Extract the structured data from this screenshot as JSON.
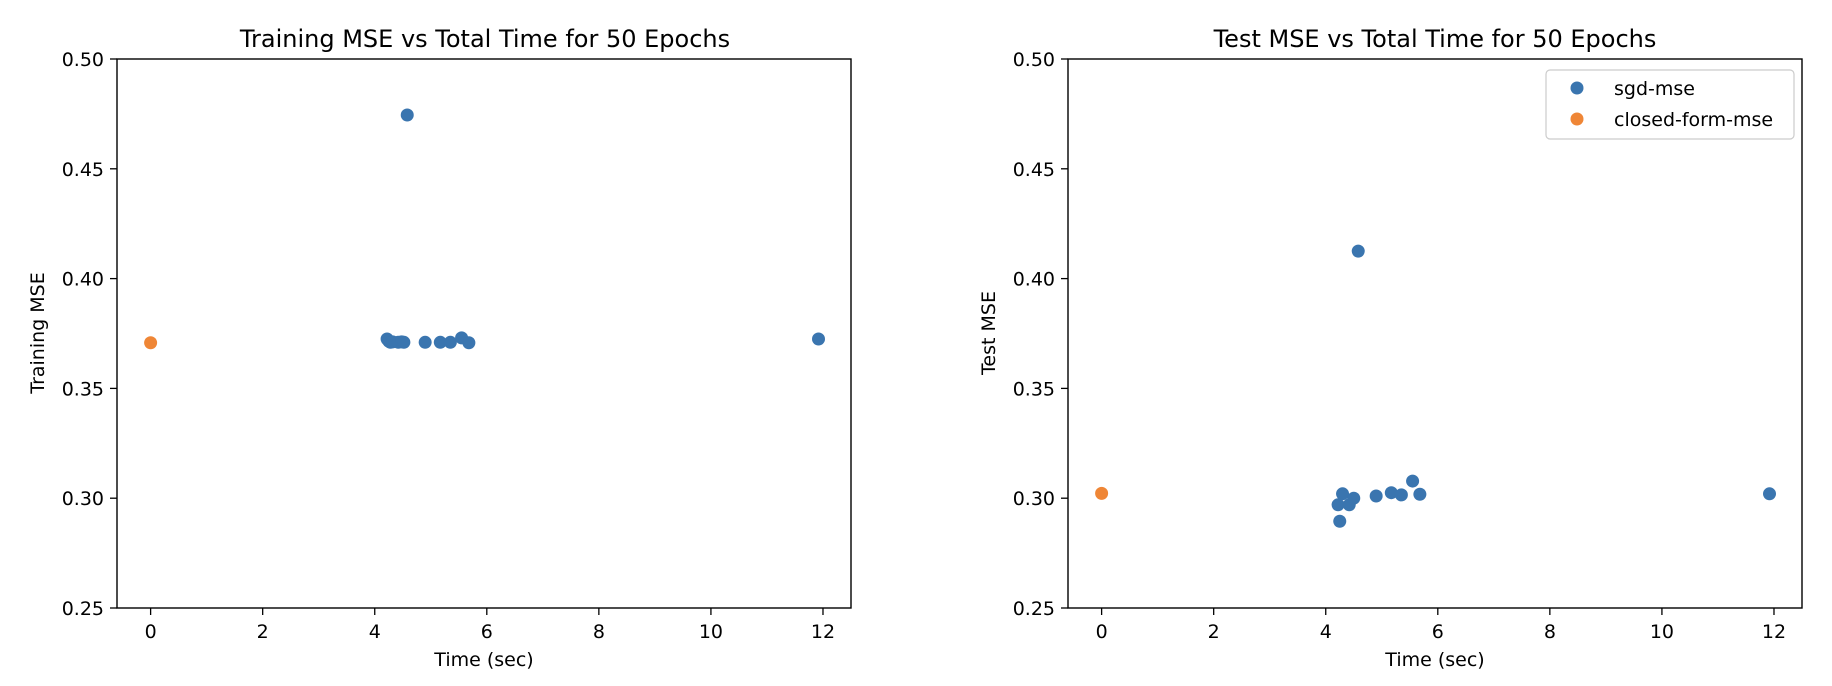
{
  "chart_data": [
    {
      "type": "scatter",
      "title": "Training MSE vs Total Time for 50 Epochs",
      "xlabel": "Time (sec)",
      "ylabel": "Training MSE",
      "xlim": [
        -0.6,
        12.5
      ],
      "ylim": [
        0.25,
        0.5
      ],
      "xticks": [
        "0",
        "2",
        "4",
        "6",
        "8",
        "10",
        "12"
      ],
      "yticks": [
        "0.25",
        "0.30",
        "0.35",
        "0.40",
        "0.45",
        "0.50"
      ],
      "legend": null,
      "series": [
        {
          "name": "sgd-mse",
          "color": "#3a75af",
          "points": [
            [
              4.22,
              0.3725
            ],
            [
              4.25,
              0.3715
            ],
            [
              4.28,
              0.371
            ],
            [
              4.32,
              0.3712
            ],
            [
              4.42,
              0.371
            ],
            [
              4.48,
              0.3712
            ],
            [
              4.52,
              0.371
            ],
            [
              4.58,
              0.4745
            ],
            [
              4.9,
              0.371
            ],
            [
              5.17,
              0.371
            ],
            [
              5.35,
              0.371
            ],
            [
              5.55,
              0.373
            ],
            [
              5.68,
              0.3708
            ],
            [
              11.92,
              0.3725
            ]
          ]
        },
        {
          "name": "closed-form-mse",
          "color": "#ef8636",
          "points": [
            [
              0.0,
              0.3708
            ]
          ]
        }
      ]
    },
    {
      "type": "scatter",
      "title": "Test MSE vs Total Time for 50 Epochs",
      "xlabel": "Time (sec)",
      "ylabel": "Test MSE",
      "xlim": [
        -0.6,
        12.5
      ],
      "ylim": [
        0.25,
        0.5
      ],
      "xticks": [
        "0",
        "2",
        "4",
        "6",
        "8",
        "10",
        "12"
      ],
      "yticks": [
        "0.25",
        "0.30",
        "0.35",
        "0.40",
        "0.45",
        "0.50"
      ],
      "legend": "top-right",
      "series": [
        {
          "name": "sgd-mse",
          "color": "#3a75af",
          "points": [
            [
              4.22,
              0.297
            ],
            [
              4.25,
              0.2895
            ],
            [
              4.3,
              0.302
            ],
            [
              4.42,
              0.297
            ],
            [
              4.5,
              0.3
            ],
            [
              4.58,
              0.4125
            ],
            [
              4.9,
              0.301
            ],
            [
              5.17,
              0.3025
            ],
            [
              5.35,
              0.3015
            ],
            [
              5.55,
              0.3078
            ],
            [
              5.68,
              0.3018
            ],
            [
              11.92,
              0.302
            ]
          ]
        },
        {
          "name": "closed-form-mse",
          "color": "#ef8636",
          "points": [
            [
              0.0,
              0.3022
            ]
          ]
        }
      ]
    }
  ]
}
